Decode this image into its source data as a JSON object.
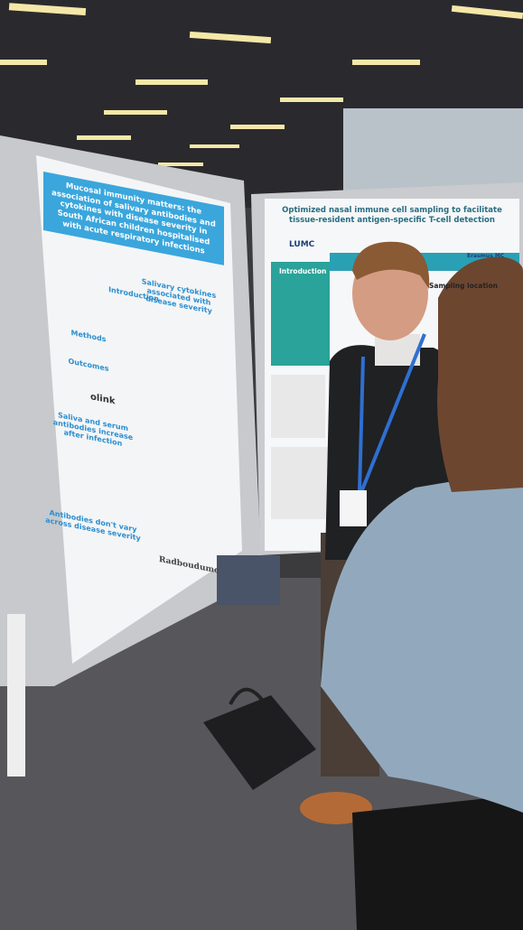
{
  "left_poster": {
    "title": "Mucosal immunity matters: the association of salivary antibodies and cytokines with disease severity in South African children hospitalised with acute respiratory infections",
    "sections": [
      "Introduction",
      "Methods",
      "Outcomes",
      "Saliva and serum antibodies increase after infection",
      "Antibodies don't vary across disease severity",
      "Salivary cytokines associated with disease severity"
    ],
    "logos": [
      "olink",
      "Radboudumc"
    ]
  },
  "right_poster": {
    "title": "Optimized nasal immune cell sampling to facilitate tissue-resident antigen-specific T-cell detection",
    "sections": [
      "Introduction",
      "Sampling location"
    ],
    "logos": [
      "LUMC",
      "Erasmus MC"
    ]
  }
}
